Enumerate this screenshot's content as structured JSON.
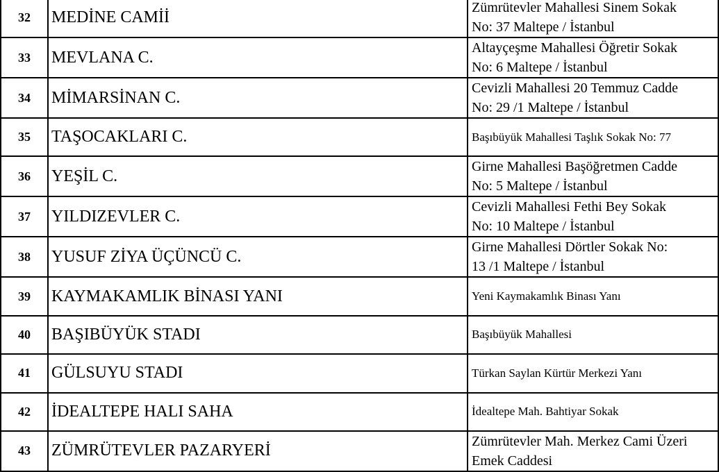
{
  "rows": [
    {
      "no": "32",
      "name": "MEDİNE CAMİİ",
      "address": [
        "Zümrütevler Mahallesi Sinem Sokak",
        "No: 37 Maltepe / İstanbul"
      ]
    },
    {
      "no": "33",
      "name": "MEVLANA C.",
      "address": [
        "Altayçeşme Mahallesi Öğretir Sokak",
        "No: 6 Maltepe / İstanbul"
      ]
    },
    {
      "no": "34",
      "name": "MİMARSİNAN C.",
      "address": [
        "Cevizli Mahallesi 20 Temmuz Cadde",
        "No: 29 /1 Maltepe / İstanbul"
      ]
    },
    {
      "no": "35",
      "name": "TAŞOCAKLARI C.",
      "address": [
        "Başıbüyük Mahallesi Taşlık Sokak No: 77"
      ]
    },
    {
      "no": "36",
      "name": "YEŞİL C.",
      "address": [
        "Girne Mahallesi Başöğretmen Cadde",
        "No: 5 Maltepe / İstanbul"
      ]
    },
    {
      "no": "37",
      "name": "YILDIZEVLER C.",
      "address": [
        "Cevizli Mahallesi Fethi Bey Sokak",
        "No: 10 Maltepe / İstanbul"
      ]
    },
    {
      "no": "38",
      "name": "YUSUF ZİYA ÜÇÜNCÜ C.",
      "address": [
        "Girne Mahallesi Dörtler Sokak No:",
        "13 /1 Maltepe / İstanbul"
      ]
    },
    {
      "no": "39",
      "name": "KAYMAKAMLIK BİNASI YANI",
      "address": [
        "Yeni Kaymakamlık Binası Yanı"
      ]
    },
    {
      "no": "40",
      "name": "BAŞIBÜYÜK STADI",
      "address": [
        "Başıbüyük Mahallesi"
      ]
    },
    {
      "no": "41",
      "name": "GÜLSUYU STADI",
      "address": [
        "Türkan Saylan Kürtür Merkezi Yanı"
      ]
    },
    {
      "no": "42",
      "name": "İDEALTEPE HALI SAHA",
      "address": [
        "İdealtepe Mah. Bahtiyar Sokak"
      ]
    },
    {
      "no": "43",
      "name": "ZÜMRÜTEVLER PAZARYERİ",
      "address": [
        "Zümrütevler Mah. Merkez Cami Üzeri",
        "Emek Caddesi"
      ]
    }
  ]
}
